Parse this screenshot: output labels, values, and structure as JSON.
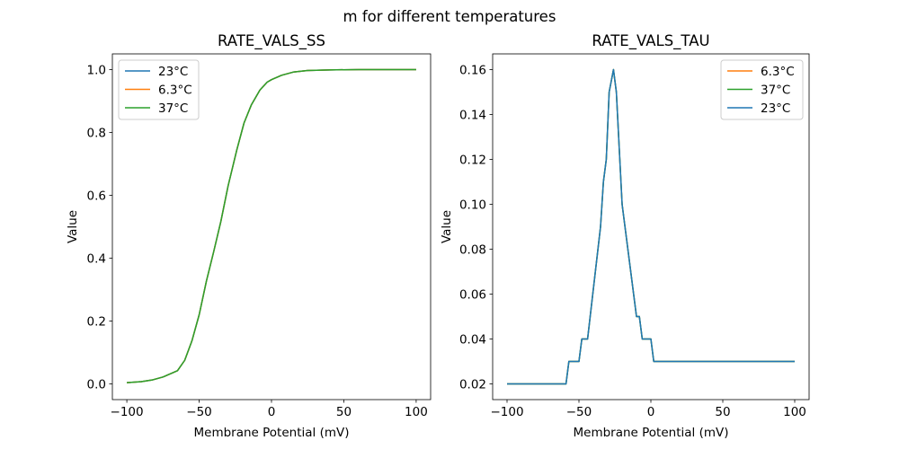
{
  "suptitle": "m for different temperatures",
  "colors": {
    "23°C": "#1f77b4",
    "6.3°C": "#ff7f0e",
    "37°C": "#2ca02c"
  },
  "chart_data": [
    {
      "type": "line",
      "title": "RATE_VALS_SS",
      "xlabel": "Membrane Potential (mV)",
      "ylabel": "Value",
      "xlim": [
        -110,
        110
      ],
      "ylim": [
        -0.05,
        1.05
      ],
      "xticks": [
        -100,
        -50,
        0,
        50,
        100
      ],
      "xtick_labels": [
        "−100",
        "−50",
        "0",
        "50",
        "100"
      ],
      "yticks": [
        0.0,
        0.2,
        0.4,
        0.6,
        0.8,
        1.0
      ],
      "ytick_labels": [
        "0.0",
        "0.2",
        "0.4",
        "0.6",
        "0.8",
        "1.0"
      ],
      "legend_position": "upper-left",
      "legend": [
        "23°C",
        "6.3°C",
        "37°C"
      ],
      "x": [
        -100,
        -90,
        -82,
        -75,
        -65,
        -60,
        -55,
        -50,
        -45,
        -40,
        -35,
        -30,
        -24,
        -19,
        -14,
        -8,
        -3,
        0,
        7,
        15,
        25,
        40,
        60,
        100
      ],
      "series": [
        {
          "name": "23°C",
          "values": [
            0.004,
            0.007,
            0.013,
            0.022,
            0.042,
            0.075,
            0.137,
            0.22,
            0.327,
            0.42,
            0.517,
            0.63,
            0.744,
            0.83,
            0.887,
            0.935,
            0.96,
            0.968,
            0.982,
            0.992,
            0.997,
            0.999,
            1.0,
            1.0
          ]
        },
        {
          "name": "6.3°C",
          "values": [
            0.004,
            0.007,
            0.013,
            0.022,
            0.042,
            0.075,
            0.137,
            0.22,
            0.327,
            0.42,
            0.517,
            0.63,
            0.744,
            0.83,
            0.887,
            0.935,
            0.96,
            0.968,
            0.982,
            0.992,
            0.997,
            0.999,
            1.0,
            1.0
          ]
        },
        {
          "name": "37°C",
          "values": [
            0.004,
            0.007,
            0.013,
            0.022,
            0.042,
            0.075,
            0.137,
            0.22,
            0.327,
            0.42,
            0.517,
            0.63,
            0.744,
            0.83,
            0.887,
            0.935,
            0.96,
            0.968,
            0.982,
            0.992,
            0.997,
            0.999,
            1.0,
            1.0
          ]
        }
      ]
    },
    {
      "type": "line",
      "title": "RATE_VALS_TAU",
      "xlabel": "Membrane Potential (mV)",
      "ylabel": "Value",
      "xlim": [
        -110,
        110
      ],
      "ylim": [
        0.013,
        0.167
      ],
      "xticks": [
        -100,
        -50,
        0,
        50,
        100
      ],
      "xtick_labels": [
        "−100",
        "−50",
        "0",
        "50",
        "100"
      ],
      "yticks": [
        0.02,
        0.04,
        0.06,
        0.08,
        0.1,
        0.12,
        0.14,
        0.16
      ],
      "ytick_labels": [
        "0.02",
        "0.04",
        "0.06",
        "0.08",
        "0.10",
        "0.12",
        "0.14",
        "0.16"
      ],
      "legend_position": "upper-right",
      "legend": [
        "6.3°C",
        "37°C",
        "23°C"
      ],
      "x": [
        -100,
        -59,
        -57,
        -50,
        -48,
        -44,
        -35,
        -33,
        -31,
        -29,
        -26,
        -24,
        -20,
        -10,
        -8,
        -6,
        0,
        2,
        100
      ],
      "series": [
        {
          "name": "6.3°C",
          "values": [
            0.02,
            0.02,
            0.03,
            0.03,
            0.04,
            0.04,
            0.09,
            0.11,
            0.12,
            0.15,
            0.16,
            0.15,
            0.1,
            0.05,
            0.05,
            0.04,
            0.04,
            0.03,
            0.03
          ]
        },
        {
          "name": "37°C",
          "values": [
            0.02,
            0.02,
            0.03,
            0.03,
            0.04,
            0.04,
            0.09,
            0.11,
            0.12,
            0.15,
            0.16,
            0.15,
            0.1,
            0.05,
            0.05,
            0.04,
            0.04,
            0.03,
            0.03
          ]
        },
        {
          "name": "23°C",
          "values": [
            0.02,
            0.02,
            0.03,
            0.03,
            0.04,
            0.04,
            0.09,
            0.11,
            0.12,
            0.15,
            0.16,
            0.15,
            0.1,
            0.05,
            0.05,
            0.04,
            0.04,
            0.03,
            0.03
          ]
        }
      ]
    }
  ]
}
